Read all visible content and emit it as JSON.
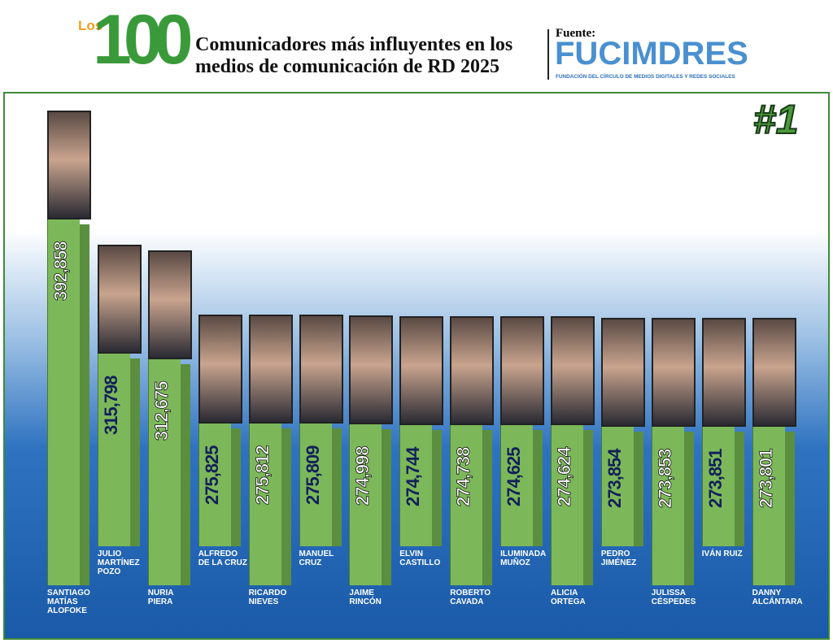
{
  "chart_data": {
    "type": "bar",
    "logo_prefix": "Los",
    "logo_number": "100",
    "title": "Comunicadores más influyentes en los\nmedios de comunicación de RD 2025",
    "source_label": "Fuente:",
    "source_name": "FUCIMDRES",
    "source_subtitle": "FUNDACIÓN DEL CÍRCULO DE MEDIOS DIGITALES Y REDES SOCIALES",
    "rank_badge": "#1",
    "categories": [
      "SANTIAGO\nMATÍAS\nALOFOKE",
      "JULIO\nMARTÍNEZ\nPOZO",
      "NURIA\nPIERA",
      "ALFREDO\nDE LA CRUZ",
      "RICARDO\nNIEVES",
      "MANUEL\nCRUZ",
      "JAIME\nRINCÓN",
      "ELVIN\nCASTILLO",
      "ROBERTO\nCAVADA",
      "ILUMINADA\nMUÑOZ",
      "ALICIA\nORTEGA",
      "PEDRO\nJIMÉNEZ",
      "JULISSA\nCÉSPEDES",
      "IVÁN RUIZ",
      "DANNY\nALCÁNTARA"
    ],
    "values": [
      392858,
      315798,
      312675,
      275825,
      275812,
      275809,
      274998,
      274744,
      274738,
      274625,
      274624,
      273854,
      273853,
      273851,
      273801
    ],
    "value_labels": [
      "392,858",
      "315,798",
      "312,675",
      "275,825",
      "275,812",
      "275,809",
      "274,998",
      "274,744",
      "274,738",
      "274,625",
      "274,624",
      "273,854",
      "273,853",
      "273,851",
      "273,801"
    ],
    "color": "#7cb85a",
    "side_color": "#5b8f3f"
  }
}
